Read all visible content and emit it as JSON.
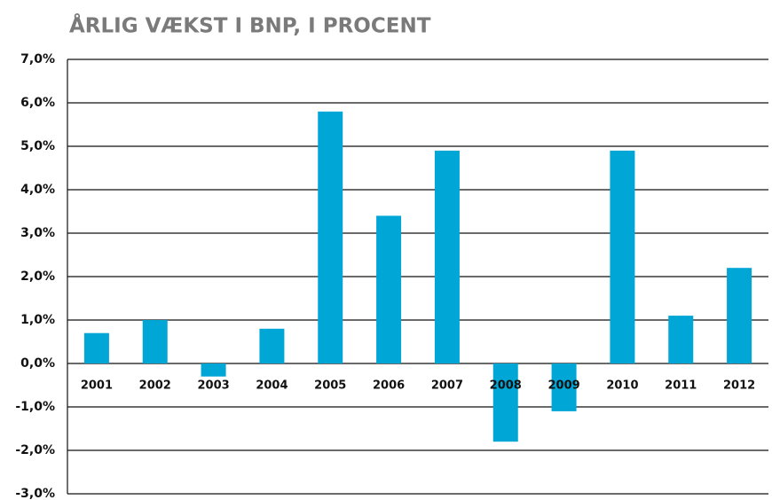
{
  "chart_data": {
    "type": "bar",
    "title": "ÅRLIG VÆKST I BNP, I PROCENT",
    "categories": [
      "2001",
      "2002",
      "2003",
      "2004",
      "2005",
      "2006",
      "2007",
      "2008",
      "2009",
      "2010",
      "2011",
      "2012"
    ],
    "values": [
      0.7,
      1.0,
      -0.3,
      0.8,
      5.8,
      3.4,
      4.9,
      -1.8,
      -1.1,
      4.9,
      1.1,
      2.2
    ],
    "color": "#00a6d6",
    "ylim": [
      -3,
      7
    ],
    "yticks": [
      {
        "value": -3,
        "label": "-3,0%"
      },
      {
        "value": -2,
        "label": "-2,0%"
      },
      {
        "value": -1,
        "label": "-1,0%"
      },
      {
        "value": 0,
        "label": "0,0%"
      },
      {
        "value": 1,
        "label": "1,0%"
      },
      {
        "value": 2,
        "label": "2,0%"
      },
      {
        "value": 3,
        "label": "3,0%"
      },
      {
        "value": 4,
        "label": "4,0%"
      },
      {
        "value": 5,
        "label": "5,0%"
      },
      {
        "value": 6,
        "label": "6,0%"
      },
      {
        "value": 7,
        "label": "7,0%"
      }
    ],
    "grid": true
  }
}
